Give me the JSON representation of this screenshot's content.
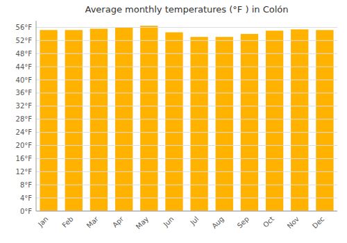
{
  "chart_data": {
    "type": "bar",
    "title": "Average monthly temperatures (°F ) in Colón",
    "categories": [
      "Jan",
      "Feb",
      "Mar",
      "Apr",
      "May",
      "Jun",
      "Jul",
      "Aug",
      "Sep",
      "Oct",
      "Nov",
      "Dec"
    ],
    "values": [
      55.2,
      55.2,
      55.6,
      56.0,
      56.5,
      54.5,
      53.1,
      53.1,
      54.0,
      55.0,
      55.4,
      55.2
    ],
    "color": "#FFB300",
    "ylim": [
      0,
      58
    ],
    "yticks": [
      {
        "value": 0,
        "label": "0°F"
      },
      {
        "value": 4,
        "label": "4°F"
      },
      {
        "value": 8,
        "label": "8°F"
      },
      {
        "value": 12,
        "label": "12°F"
      },
      {
        "value": 16,
        "label": "16°F"
      },
      {
        "value": 20,
        "label": "20°F"
      },
      {
        "value": 24,
        "label": "24°F"
      },
      {
        "value": 28,
        "label": "28°F"
      },
      {
        "value": 32,
        "label": "32°F"
      },
      {
        "value": 36,
        "label": "36°F"
      },
      {
        "value": 40,
        "label": "40°F"
      },
      {
        "value": 44,
        "label": "44°F"
      },
      {
        "value": 48,
        "label": "48°F"
      },
      {
        "value": 52,
        "label": "52°F"
      },
      {
        "value": 56,
        "label": "56°F"
      }
    ],
    "grid": true
  }
}
